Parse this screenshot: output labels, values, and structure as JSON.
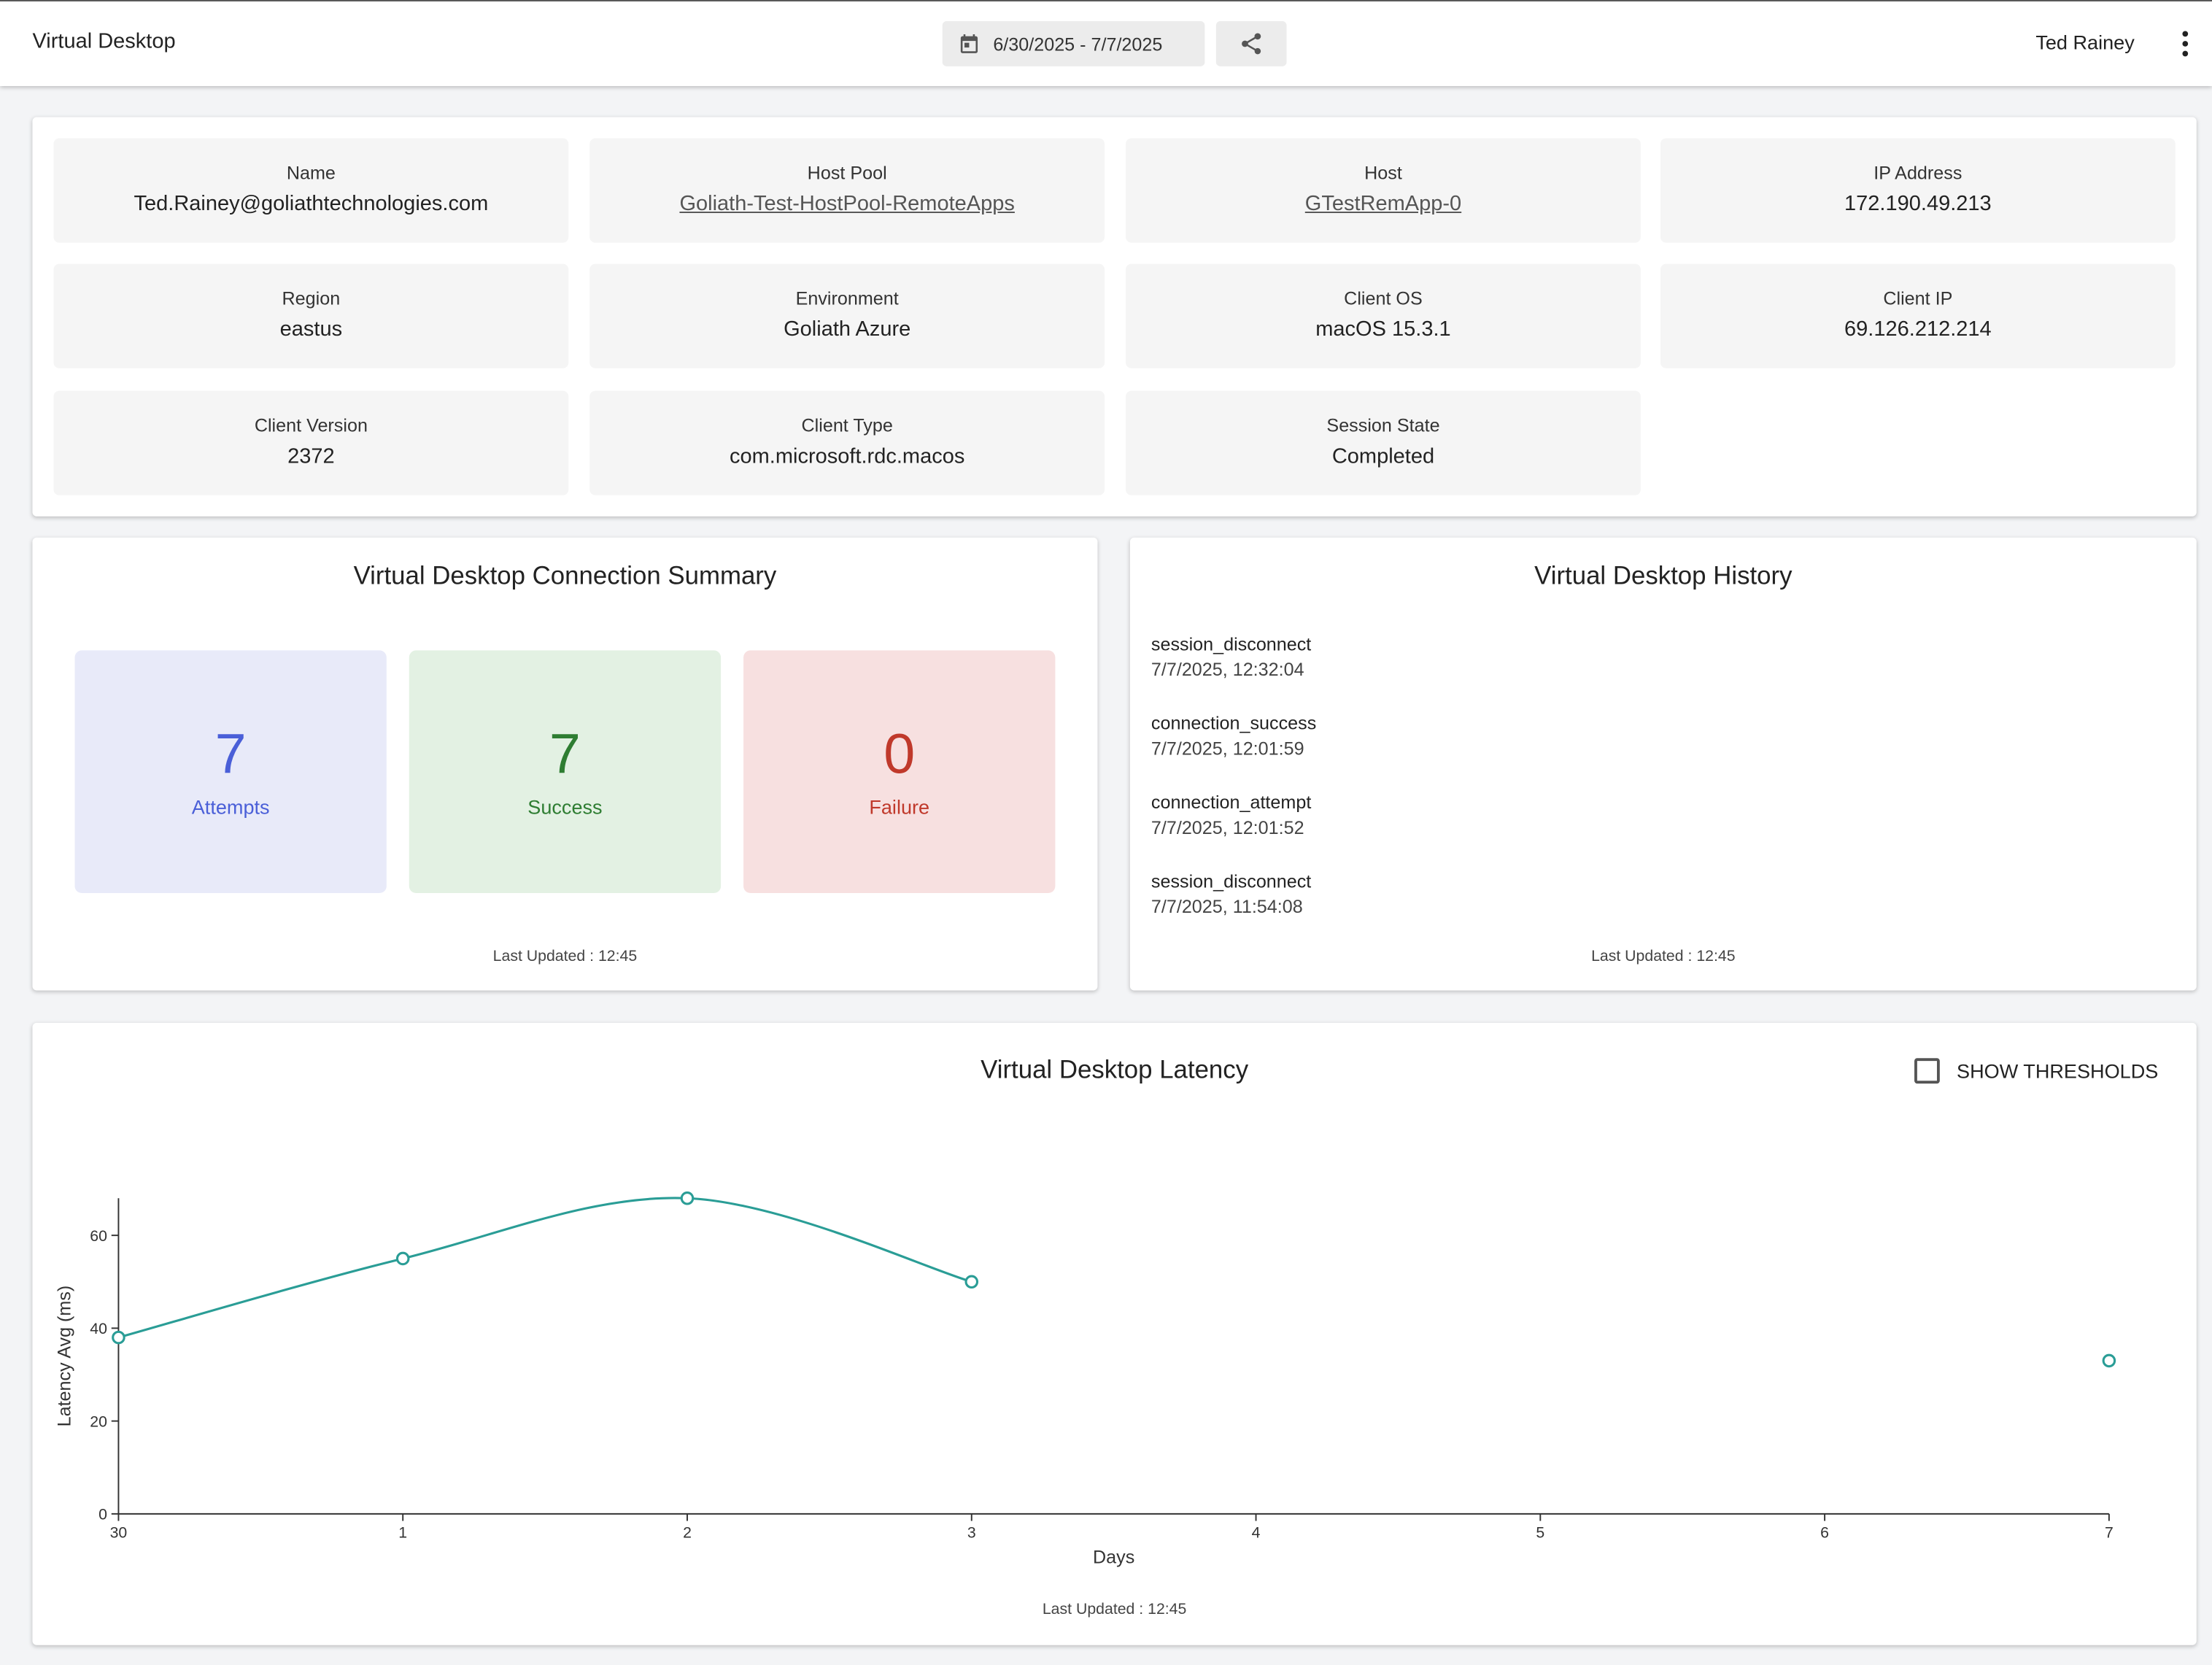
{
  "header": {
    "app_title": "Virtual Desktop",
    "date_range": "6/30/2025 - 7/7/2025",
    "user_name": "Ted Rainey",
    "icons": {
      "calendar": "calendar-icon",
      "share": "share-icon",
      "menu": "more-vert-icon"
    }
  },
  "info": {
    "name": {
      "label": "Name",
      "value": "Ted.Rainey@goliathtechnologies.com"
    },
    "host_pool": {
      "label": "Host Pool",
      "value": "Goliath-Test-HostPool-RemoteApps"
    },
    "host": {
      "label": "Host",
      "value": "GTestRemApp-0"
    },
    "ip_address": {
      "label": "IP Address",
      "value": "172.190.49.213"
    },
    "region": {
      "label": "Region",
      "value": "eastus"
    },
    "environment": {
      "label": "Environment",
      "value": "Goliath Azure"
    },
    "client_os": {
      "label": "Client OS",
      "value": "macOS 15.3.1"
    },
    "client_ip": {
      "label": "Client IP",
      "value": "69.126.212.214"
    },
    "client_version": {
      "label": "Client Version",
      "value": "2372"
    },
    "client_type": {
      "label": "Client Type",
      "value": "com.microsoft.rdc.macos"
    },
    "session_state": {
      "label": "Session State",
      "value": "Completed"
    }
  },
  "summary": {
    "title": "Virtual Desktop Connection Summary",
    "attempts": {
      "value": "7",
      "label": "Attempts",
      "color": "#4a5fd8",
      "bg": "#e8eaf9"
    },
    "success": {
      "value": "7",
      "label": "Success",
      "color": "#2e7d32",
      "bg": "#e3f1e3"
    },
    "failure": {
      "value": "0",
      "label": "Failure",
      "color": "#c0392b",
      "bg": "#f7e0e0"
    },
    "last_updated": "Last Updated : 12:45"
  },
  "history": {
    "title": "Virtual Desktop History",
    "items": [
      {
        "event": "session_disconnect",
        "time": "7/7/2025, 12:32:04"
      },
      {
        "event": "connection_success",
        "time": "7/7/2025, 12:01:59"
      },
      {
        "event": "connection_attempt",
        "time": "7/7/2025, 12:01:52"
      },
      {
        "event": "session_disconnect",
        "time": "7/7/2025, 11:54:08"
      }
    ],
    "last_updated": "Last Updated : 12:45"
  },
  "latency": {
    "title": "Virtual Desktop Latency",
    "show_thresholds_label": "SHOW THRESHOLDS",
    "show_thresholds_checked": false,
    "last_updated": "Last Updated : 12:45"
  },
  "chart_data": {
    "type": "line",
    "title": "Virtual Desktop Latency",
    "xlabel": "Days",
    "ylabel": "Latency Avg (ms)",
    "x_ticks": [
      "30",
      "1",
      "2",
      "3",
      "4",
      "5",
      "6",
      "7"
    ],
    "y_ticks": [
      "0",
      "20",
      "40",
      "60"
    ],
    "ylim": [
      0,
      68
    ],
    "grid": false,
    "line_color": "#2a9d96",
    "series": [
      {
        "points": [
          {
            "x": "30",
            "y": 38
          },
          {
            "x": "1",
            "y": 55
          },
          {
            "x": "2",
            "y": 68
          },
          {
            "x": "3",
            "y": 50
          },
          {
            "x": "4",
            "y": null
          },
          {
            "x": "5",
            "y": null
          },
          {
            "x": "6",
            "y": null
          },
          {
            "x": "7",
            "y": 33
          }
        ]
      }
    ]
  }
}
